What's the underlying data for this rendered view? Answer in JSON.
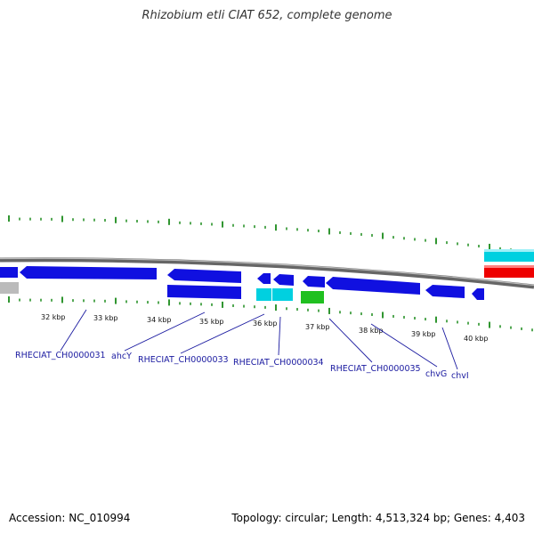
{
  "title": "Rhizobium etli CIAT 652, complete genome",
  "footer": {
    "accession": "Accession: NC_010994",
    "summary": "Topology: circular; Length: 4,513,324 bp; Genes: 4,403"
  },
  "colors": {
    "gene_blue": "#1010e0",
    "gene_cyan": "#00d0e0",
    "gene_green": "#20c020",
    "gene_red": "#ee0000",
    "gene_grey": "#bbbbbb",
    "tick_green": "#1a8a1a",
    "label_blue": "#1a1aa0",
    "backbone": "#888888"
  },
  "scale_labels": [
    "32 kbp",
    "33 kbp",
    "34 kbp",
    "35 kbp",
    "36 kbp",
    "37 kbp",
    "38 kbp",
    "39 kbp",
    "40 kbp"
  ],
  "gene_labels": [
    "RHECIAT_CH0000031",
    "ahcY",
    "RHECIAT_CH0000033",
    "RHECIAT_CH0000034",
    "RHECIAT_CH0000035",
    "chvG",
    "chvI"
  ]
}
